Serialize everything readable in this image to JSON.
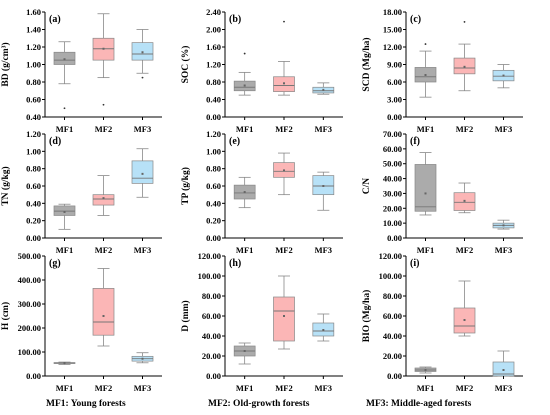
{
  "colors": {
    "MF1": "#ababab",
    "MF2": "#fbb6b6",
    "MF3": "#b7e1f7"
  },
  "footer": {
    "mf1": "MF1: Young forests",
    "mf2": "MF2: Old-growth forests",
    "mf3": "MF3: Middle-aged forests"
  },
  "chart_data": [
    {
      "type": "box",
      "panel_label": "(a)",
      "ylabel": "BD (g/cm³)",
      "yticks": [
        "0.40",
        "0.60",
        "0.80",
        "1.00",
        "1.20",
        "1.40",
        "1.60"
      ],
      "ylim": [
        0.4,
        1.6
      ],
      "categories": [
        "MF1",
        "MF2",
        "MF3"
      ],
      "boxes": [
        {
          "min": 0.78,
          "q1": 1.0,
          "median": 1.05,
          "q3": 1.14,
          "max": 1.26,
          "mean": 1.06,
          "outliers": [
            0.5
          ]
        },
        {
          "min": 0.85,
          "q1": 1.05,
          "median": 1.18,
          "q3": 1.3,
          "max": 1.58,
          "mean": 1.18,
          "outliers": [
            0.54
          ]
        },
        {
          "min": 0.9,
          "q1": 1.05,
          "median": 1.12,
          "q3": 1.25,
          "max": 1.4,
          "mean": 1.14,
          "outliers": [
            0.85
          ]
        }
      ]
    },
    {
      "type": "box",
      "panel_label": "(b)",
      "ylabel": "SOC (%)",
      "yticks": [
        "0.00",
        "0.40",
        "0.80",
        "1.20",
        "1.60",
        "2.00",
        "2.40"
      ],
      "ylim": [
        0.0,
        2.4
      ],
      "categories": [
        "MF1",
        "MF2",
        "MF3"
      ],
      "boxes": [
        {
          "min": 0.5,
          "q1": 0.6,
          "median": 0.68,
          "q3": 0.82,
          "max": 1.02,
          "mean": 0.72,
          "outliers": [
            1.45
          ]
        },
        {
          "min": 0.5,
          "q1": 0.58,
          "median": 0.72,
          "q3": 0.92,
          "max": 1.27,
          "mean": 0.77,
          "outliers": [
            2.18
          ]
        },
        {
          "min": 0.52,
          "q1": 0.55,
          "median": 0.6,
          "q3": 0.68,
          "max": 0.78,
          "mean": 0.62,
          "outliers": []
        }
      ]
    },
    {
      "type": "box",
      "panel_label": "(c)",
      "ylabel": "SCD (Mg/ha)",
      "yticks": [
        "0.00",
        "3.00",
        "6.00",
        "9.00",
        "12.00",
        "15.00",
        "18.00"
      ],
      "ylim": [
        0,
        18
      ],
      "categories": [
        "MF1",
        "MF2",
        "MF3"
      ],
      "boxes": [
        {
          "min": 3.4,
          "q1": 6.0,
          "median": 6.9,
          "q3": 8.5,
          "max": 11.3,
          "mean": 7.2,
          "outliers": [
            12.5
          ]
        },
        {
          "min": 4.5,
          "q1": 7.4,
          "median": 8.4,
          "q3": 10.1,
          "max": 12.5,
          "mean": 8.6,
          "outliers": [
            16.3
          ]
        },
        {
          "min": 5.0,
          "q1": 6.2,
          "median": 7.0,
          "q3": 8.0,
          "max": 9.0,
          "mean": 7.1,
          "outliers": []
        }
      ]
    },
    {
      "type": "box",
      "panel_label": "(d)",
      "ylabel": "TN (g/kg)",
      "yticks": [
        "0.00",
        "0.20",
        "0.40",
        "0.60",
        "0.80",
        "1.00",
        "1.20"
      ],
      "ylim": [
        0,
        1.2
      ],
      "categories": [
        "MF1",
        "MF2",
        "MF3"
      ],
      "boxes": [
        {
          "min": 0.1,
          "q1": 0.26,
          "median": 0.31,
          "q3": 0.37,
          "max": 0.39,
          "mean": 0.3,
          "outliers": []
        },
        {
          "min": 0.26,
          "q1": 0.38,
          "median": 0.45,
          "q3": 0.5,
          "max": 0.72,
          "mean": 0.46,
          "outliers": []
        },
        {
          "min": 0.47,
          "q1": 0.63,
          "median": 0.69,
          "q3": 0.89,
          "max": 1.03,
          "mean": 0.74,
          "outliers": []
        }
      ]
    },
    {
      "type": "box",
      "panel_label": "(e)",
      "ylabel": "TP (g/kg)",
      "yticks": [
        "0.00",
        "0.20",
        "0.40",
        "0.60",
        "0.80",
        "1.00",
        "1.20"
      ],
      "ylim": [
        0,
        1.2
      ],
      "categories": [
        "MF1",
        "MF2",
        "MF3"
      ],
      "boxes": [
        {
          "min": 0.35,
          "q1": 0.45,
          "median": 0.52,
          "q3": 0.61,
          "max": 0.7,
          "mean": 0.53,
          "outliers": []
        },
        {
          "min": 0.5,
          "q1": 0.7,
          "median": 0.77,
          "q3": 0.87,
          "max": 0.98,
          "mean": 0.78,
          "outliers": []
        },
        {
          "min": 0.32,
          "q1": 0.5,
          "median": 0.6,
          "q3": 0.72,
          "max": 0.76,
          "mean": 0.6,
          "outliers": []
        }
      ]
    },
    {
      "type": "box",
      "panel_label": "(f)",
      "ylabel": "C/N",
      "yticks": [
        "0.00",
        "10.00",
        "20.00",
        "30.00",
        "40.00",
        "50.00",
        "60.00",
        "70.00"
      ],
      "ylim": [
        0,
        70
      ],
      "categories": [
        "MF1",
        "MF2",
        "MF3"
      ],
      "boxes": [
        {
          "min": 15.5,
          "q1": 18.0,
          "median": 21.0,
          "q3": 49.5,
          "max": 57.5,
          "mean": 30.0,
          "outliers": []
        },
        {
          "min": 17.0,
          "q1": 18.5,
          "median": 24.0,
          "q3": 30.5,
          "max": 37.0,
          "mean": 25.0,
          "outliers": []
        },
        {
          "min": 6.0,
          "q1": 6.8,
          "median": 8.5,
          "q3": 10.0,
          "max": 12.0,
          "mean": 8.5,
          "outliers": []
        }
      ]
    },
    {
      "type": "box",
      "panel_label": "(g)",
      "ylabel": "H (cm)",
      "yticks": [
        "0.00",
        "100.00",
        "200.00",
        "300.00",
        "400.00",
        "500.00"
      ],
      "ylim": [
        0,
        500
      ],
      "categories": [
        "MF1",
        "MF2",
        "MF3"
      ],
      "boxes": [
        {
          "min": 48,
          "q1": 52,
          "median": 54,
          "q3": 56,
          "max": 58,
          "mean": 54,
          "outliers": []
        },
        {
          "min": 125,
          "q1": 170,
          "median": 225,
          "q3": 365,
          "max": 448,
          "mean": 250,
          "outliers": []
        },
        {
          "min": 55,
          "q1": 62,
          "median": 72,
          "q3": 82,
          "max": 97,
          "mean": 72,
          "outliers": []
        }
      ]
    },
    {
      "type": "box",
      "panel_label": "(h)",
      "ylabel": "D (mm)",
      "yticks": [
        "0.00",
        "20.00",
        "40.00",
        "60.00",
        "80.00",
        "100.00",
        "120.00"
      ],
      "ylim": [
        0,
        120
      ],
      "categories": [
        "MF1",
        "MF2",
        "MF3"
      ],
      "boxes": [
        {
          "min": 12,
          "q1": 20,
          "median": 25,
          "q3": 30,
          "max": 33,
          "mean": 25,
          "outliers": []
        },
        {
          "min": 27,
          "q1": 35,
          "median": 65,
          "q3": 79,
          "max": 100,
          "mean": 60,
          "outliers": []
        },
        {
          "min": 35,
          "q1": 40,
          "median": 45,
          "q3": 53,
          "max": 62,
          "mean": 46,
          "outliers": []
        }
      ]
    },
    {
      "type": "box",
      "panel_label": "(i)",
      "ylabel": "BIO (Mg/ha)",
      "yticks": [
        "0.00",
        "20.00",
        "40.00",
        "60.00",
        "80.00",
        "100.00",
        "120.00"
      ],
      "ylim": [
        0,
        120
      ],
      "categories": [
        "MF1",
        "MF2",
        "MF3"
      ],
      "boxes": [
        {
          "min": 3,
          "q1": 4.5,
          "median": 6,
          "q3": 8,
          "max": 9,
          "mean": 6,
          "outliers": []
        },
        {
          "min": 40,
          "q1": 43,
          "median": 50,
          "q3": 68,
          "max": 95,
          "mean": 56,
          "outliers": []
        },
        {
          "min": 0,
          "q1": 0,
          "median": 2,
          "q3": 14,
          "max": 25,
          "mean": 6,
          "outliers": []
        }
      ]
    }
  ]
}
